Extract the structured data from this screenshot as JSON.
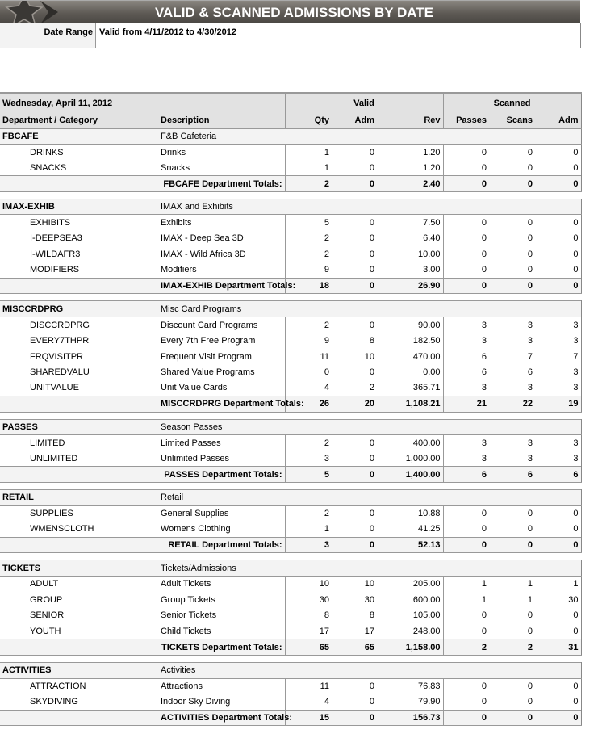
{
  "header": {
    "title": "VALID & SCANNED ADMISSIONS BY DATE",
    "date_range_label": "Date Range",
    "date_range_value": "Valid from 4/11/2012 to 4/30/2012"
  },
  "report": {
    "date": "Wednesday, April 11, 2012",
    "group_headers": {
      "valid": "Valid",
      "scanned": "Scanned"
    },
    "columns": [
      "Department / Category",
      "Description",
      "Qty",
      "Adm",
      "Rev",
      "Passes",
      "Scans",
      "Adm"
    ],
    "departments": [
      {
        "code": "FBCAFE",
        "name": "F&B Cafeteria",
        "items": [
          [
            "DRINKS",
            "Drinks",
            "1",
            "0",
            "1.20",
            "0",
            "0",
            "0"
          ],
          [
            "SNACKS",
            "Snacks",
            "1",
            "0",
            "1.20",
            "0",
            "0",
            "0"
          ]
        ],
        "totals_label": "FBCAFE Department Totals:",
        "totals": [
          "2",
          "0",
          "2.40",
          "0",
          "0",
          "0"
        ]
      },
      {
        "code": "IMAX-EXHIB",
        "name": "IMAX and Exhibits",
        "items": [
          [
            "EXHIBITS",
            "Exhibits",
            "5",
            "0",
            "7.50",
            "0",
            "0",
            "0"
          ],
          [
            "I-DEEPSEA3",
            "IMAX - Deep Sea 3D",
            "2",
            "0",
            "6.40",
            "0",
            "0",
            "0"
          ],
          [
            "I-WILDAFR3",
            "IMAX - Wild Africa 3D",
            "2",
            "0",
            "10.00",
            "0",
            "0",
            "0"
          ],
          [
            "MODIFIERS",
            "Modifiers",
            "9",
            "0",
            "3.00",
            "0",
            "0",
            "0"
          ]
        ],
        "totals_label": "IMAX-EXHIB Department Totals:",
        "totals": [
          "18",
          "0",
          "26.90",
          "0",
          "0",
          "0"
        ]
      },
      {
        "code": "MISCCRDPRG",
        "name": "Misc Card Programs",
        "items": [
          [
            "DISCCRDPRG",
            "Discount Card Programs",
            "2",
            "0",
            "90.00",
            "3",
            "3",
            "3"
          ],
          [
            "EVERY7THPR",
            "Every 7th Free Program",
            "9",
            "8",
            "182.50",
            "3",
            "3",
            "3"
          ],
          [
            "FRQVISITPR",
            "Frequent Visit Program",
            "11",
            "10",
            "470.00",
            "6",
            "7",
            "7"
          ],
          [
            "SHAREDVALU",
            "Shared Value Programs",
            "0",
            "0",
            "0.00",
            "6",
            "6",
            "3"
          ],
          [
            "UNITVALUE",
            "Unit Value Cards",
            "4",
            "2",
            "365.71",
            "3",
            "3",
            "3"
          ]
        ],
        "totals_label": "MISCCRDPRG Department Totals:",
        "totals": [
          "26",
          "20",
          "1,108.21",
          "21",
          "22",
          "19"
        ]
      },
      {
        "code": "PASSES",
        "name": "Season Passes",
        "items": [
          [
            "LIMITED",
            "Limited Passes",
            "2",
            "0",
            "400.00",
            "3",
            "3",
            "3"
          ],
          [
            "UNLIMITED",
            "Unlimited Passes",
            "3",
            "0",
            "1,000.00",
            "3",
            "3",
            "3"
          ]
        ],
        "totals_label": "PASSES Department Totals:",
        "totals": [
          "5",
          "0",
          "1,400.00",
          "6",
          "6",
          "6"
        ]
      },
      {
        "code": "RETAIL",
        "name": "Retail",
        "items": [
          [
            "SUPPLIES",
            "General Supplies",
            "2",
            "0",
            "10.88",
            "0",
            "0",
            "0"
          ],
          [
            "WMENSCLOTH",
            "Womens Clothing",
            "1",
            "0",
            "41.25",
            "0",
            "0",
            "0"
          ]
        ],
        "totals_label": "RETAIL Department Totals:",
        "totals": [
          "3",
          "0",
          "52.13",
          "0",
          "0",
          "0"
        ]
      },
      {
        "code": "TICKETS",
        "name": "Tickets/Admissions",
        "items": [
          [
            "ADULT",
            "Adult Tickets",
            "10",
            "10",
            "205.00",
            "1",
            "1",
            "1"
          ],
          [
            "GROUP",
            "Group Tickets",
            "30",
            "30",
            "600.00",
            "1",
            "1",
            "30"
          ],
          [
            "SENIOR",
            "Senior Tickets",
            "8",
            "8",
            "105.00",
            "0",
            "0",
            "0"
          ],
          [
            "YOUTH",
            "Child Tickets",
            "17",
            "17",
            "248.00",
            "0",
            "0",
            "0"
          ]
        ],
        "totals_label": "TICKETS Department Totals:",
        "totals": [
          "65",
          "65",
          "1,158.00",
          "2",
          "2",
          "31"
        ]
      },
      {
        "code": "ACTIVITIES",
        "name": "Activities",
        "items": [
          [
            "ATTRACTION",
            "Attractions",
            "11",
            "0",
            "76.83",
            "0",
            "0",
            "0"
          ],
          [
            "SKYDIVING",
            "Indoor Sky Diving",
            "4",
            "0",
            "79.90",
            "0",
            "0",
            "0"
          ]
        ],
        "totals_label": "ACTIVITIES Department Totals:",
        "totals": [
          "15",
          "0",
          "156.73",
          "0",
          "0",
          "0"
        ]
      }
    ]
  }
}
